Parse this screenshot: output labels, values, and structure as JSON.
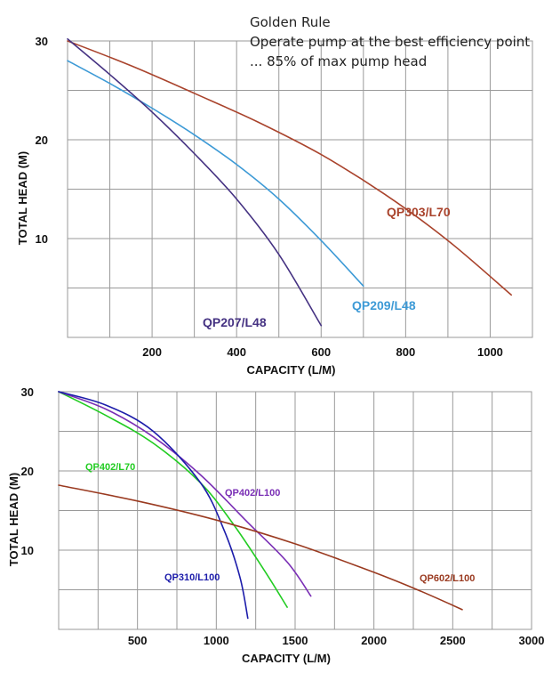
{
  "annotation": {
    "line1": "Golden Rule",
    "line2": "Operate pump at the best efficiency point",
    "line3": "... 85% of max pump head"
  },
  "chart_data": [
    {
      "type": "line",
      "xlabel": "CAPACITY (L/M)",
      "ylabel": "TOTAL HEAD (M)",
      "xlim": [
        0,
        1100
      ],
      "ylim": [
        0,
        30
      ],
      "x_ticks": [
        200,
        400,
        600,
        800,
        1000
      ],
      "y_ticks": [
        10,
        20,
        30
      ],
      "grid": true,
      "series": [
        {
          "name": "QP303/L70",
          "color": "#a9432c",
          "x": [
            0,
            150,
            300,
            450,
            600,
            750,
            900,
            1050
          ],
          "y": [
            30,
            27.5,
            24.7,
            21.8,
            18.5,
            14.5,
            9.8,
            4.3
          ]
        },
        {
          "name": "QP209/L48",
          "color": "#3d9ad6",
          "x": [
            0,
            100,
            200,
            300,
            400,
            500,
            600,
            700
          ],
          "y": [
            28,
            25.7,
            23.2,
            20.5,
            17.5,
            14.0,
            9.8,
            5.2
          ]
        },
        {
          "name": "QP207/L48",
          "color": "#453282",
          "x": [
            0,
            100,
            200,
            300,
            400,
            500,
            600
          ],
          "y": [
            30.2,
            26.6,
            22.8,
            18.6,
            14.0,
            8.4,
            1.2
          ]
        }
      ]
    },
    {
      "type": "line",
      "xlabel": "CAPACITY (L/M)",
      "ylabel": "TOTAL HEAD (M)",
      "xlim": [
        0,
        3000
      ],
      "ylim": [
        0,
        30
      ],
      "x_ticks": [
        500,
        1000,
        1500,
        2000,
        2500,
        3000
      ],
      "y_ticks": [
        10,
        20,
        30
      ],
      "grid": true,
      "series": [
        {
          "name": "QP402/L70",
          "color": "#22cc22",
          "x": [
            0,
            300,
            600,
            900,
            1100,
            1300,
            1450
          ],
          "y": [
            30,
            27,
            23.5,
            18.5,
            13.5,
            7.6,
            2.8
          ]
        },
        {
          "name": "QP402/L100",
          "color": "#7a2fb5",
          "x": [
            0,
            300,
            600,
            900,
            1200,
            1450,
            1600
          ],
          "y": [
            30,
            27.8,
            24.3,
            19.5,
            13.5,
            8.5,
            4.2
          ]
        },
        {
          "name": "QP310/L100",
          "color": "#1c1caa",
          "x": [
            0,
            300,
            600,
            900,
            1050,
            1150,
            1200
          ],
          "y": [
            30,
            28.3,
            25.0,
            18.5,
            12.5,
            6.6,
            1.4
          ]
        },
        {
          "name": "QP602/L100",
          "color": "#9a3a20",
          "x": [
            0,
            500,
            1000,
            1500,
            2000,
            2300,
            2560
          ],
          "y": [
            18.2,
            16.2,
            13.8,
            10.8,
            7.2,
            4.8,
            2.5
          ]
        }
      ]
    }
  ]
}
